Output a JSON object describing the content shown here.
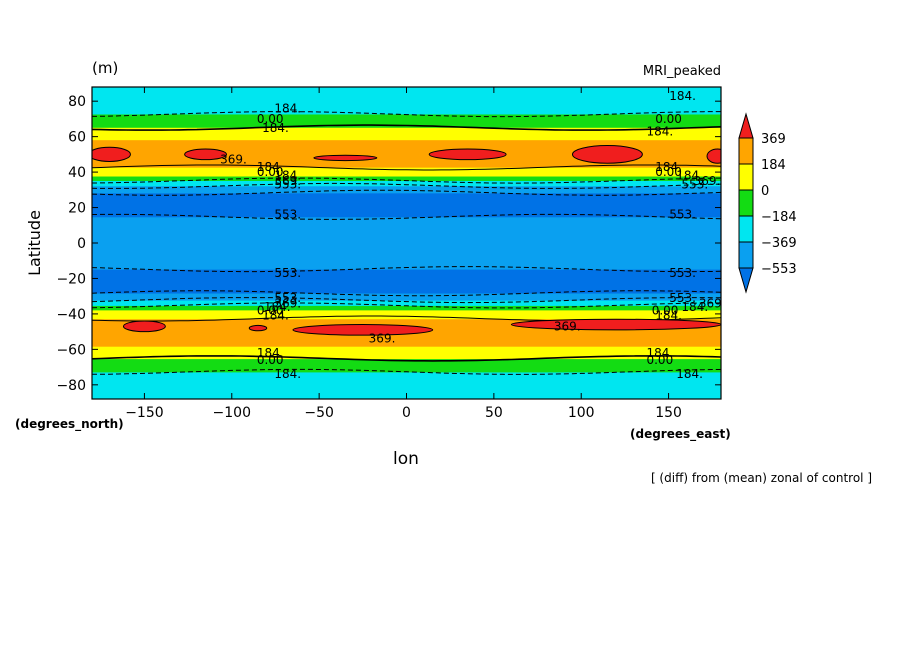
{
  "chart_data": {
    "type": "heatmap",
    "title_left": "(m)",
    "title_right": "MRI_peaked",
    "xlabel": "lon",
    "ylabel": "Latitude",
    "x_units": "(degrees_east)",
    "y_units": "(degrees_north)",
    "footnote": "[ (diff) from (mean) zonal of control ]",
    "xlim": [
      -180,
      180
    ],
    "ylim": [
      -88,
      88
    ],
    "x_ticks": [
      -150,
      -100,
      -50,
      0,
      50,
      100,
      150
    ],
    "y_ticks": [
      -80,
      -60,
      -40,
      -20,
      0,
      20,
      40,
      60,
      80
    ],
    "levels": [
      -553,
      -369,
      -184,
      0,
      184,
      369
    ],
    "colorbar_labels": [
      "369",
      "184",
      "0",
      "−184",
      "−369",
      "−553"
    ],
    "colors": [
      "#0072e6",
      "#0aa0f0",
      "#00e6f0",
      "#13dc13",
      "#ffff00",
      "#ffa500",
      "#f01e1e"
    ],
    "latitude_profile": [
      {
        "lat": 88,
        "value": -300
      },
      {
        "lat": 80,
        "value": -330
      },
      {
        "lat": 72,
        "value": -170
      },
      {
        "lat": 67,
        "value": -50
      },
      {
        "lat": 62,
        "value": 80
      },
      {
        "lat": 57,
        "value": 210
      },
      {
        "lat": 50,
        "value": 320
      },
      {
        "lat": 43,
        "value": 200
      },
      {
        "lat": 38,
        "value": 0
      },
      {
        "lat": 33,
        "value": -330
      },
      {
        "lat": 28,
        "value": -570
      },
      {
        "lat": 15,
        "value": -560
      },
      {
        "lat": 10,
        "value": -430
      },
      {
        "lat": 0,
        "value": -400
      },
      {
        "lat": -10,
        "value": -430
      },
      {
        "lat": -15,
        "value": -560
      },
      {
        "lat": -28,
        "value": -570
      },
      {
        "lat": -33,
        "value": -330
      },
      {
        "lat": -38,
        "value": 0
      },
      {
        "lat": -43,
        "value": 200
      },
      {
        "lat": -50,
        "value": 320
      },
      {
        "lat": -57,
        "value": 210
      },
      {
        "lat": -62,
        "value": 80
      },
      {
        "lat": -67,
        "value": -50
      },
      {
        "lat": -72,
        "value": -170
      },
      {
        "lat": -80,
        "value": -330
      },
      {
        "lat": -88,
        "value": -330
      }
    ],
    "peak_regions": [
      {
        "lon": -170,
        "lat": 50,
        "lon_half_width": 12,
        "lat_half_width": 4
      },
      {
        "lon": -115,
        "lat": 50,
        "lon_half_width": 12,
        "lat_half_width": 3
      },
      {
        "lon": -35,
        "lat": 48,
        "lon_half_width": 18,
        "lat_half_width": 1.5
      },
      {
        "lon": 35,
        "lat": 50,
        "lon_half_width": 22,
        "lat_half_width": 3
      },
      {
        "lon": 115,
        "lat": 50,
        "lon_half_width": 20,
        "lat_half_width": 5
      },
      {
        "lon": 178,
        "lat": 49,
        "lon_half_width": 6,
        "lat_half_width": 4
      },
      {
        "lon": -150,
        "lat": -47,
        "lon_half_width": 12,
        "lat_half_width": 3
      },
      {
        "lon": -85,
        "lat": -48,
        "lon_half_width": 5,
        "lat_half_width": 1.5
      },
      {
        "lon": -25,
        "lat": -49,
        "lon_half_width": 40,
        "lat_half_width": 3
      },
      {
        "lon": 120,
        "lat": -46,
        "lon_half_width": 60,
        "lat_half_width": 3
      }
    ],
    "contour_labels": [
      {
        "text": "184.",
        "lon": -68,
        "lat": 76
      },
      {
        "text": "0.00",
        "lon": -78,
        "lat": 70
      },
      {
        "text": "184.",
        "lon": -75,
        "lat": 65
      },
      {
        "text": "369.",
        "lon": -99,
        "lat": 47
      },
      {
        "text": "184.",
        "lon": -78,
        "lat": 43
      },
      {
        "text": "0.00",
        "lon": -78,
        "lat": 40
      },
      {
        "text": "184.",
        "lon": -68,
        "lat": 38
      },
      {
        "text": "369.",
        "lon": -68,
        "lat": 35
      },
      {
        "text": "553.",
        "lon": -68,
        "lat": 33
      },
      {
        "text": "553.",
        "lon": -68,
        "lat": 16
      },
      {
        "text": "184.",
        "lon": 158,
        "lat": 83
      },
      {
        "text": "0.00",
        "lon": 150,
        "lat": 70
      },
      {
        "text": "184.",
        "lon": 145,
        "lat": 63
      },
      {
        "text": "184.",
        "lon": 150,
        "lat": 43
      },
      {
        "text": "0.00",
        "lon": 150,
        "lat": 40
      },
      {
        "text": "184.",
        "lon": 162,
        "lat": 38
      },
      {
        "text": "369.",
        "lon": 172,
        "lat": 35
      },
      {
        "text": "553.",
        "lon": 165,
        "lat": 33
      },
      {
        "text": "553.",
        "lon": 158,
        "lat": 16
      },
      {
        "text": "553.",
        "lon": -68,
        "lat": -17
      },
      {
        "text": "553.",
        "lon": -68,
        "lat": -31
      },
      {
        "text": "369.",
        "lon": -68,
        "lat": -34
      },
      {
        "text": "184.",
        "lon": -74,
        "lat": -36
      },
      {
        "text": "0.00",
        "lon": -78,
        "lat": -38
      },
      {
        "text": "184.",
        "lon": -75,
        "lat": -41
      },
      {
        "text": "369.",
        "lon": -14,
        "lat": -54
      },
      {
        "text": "184.",
        "lon": -78,
        "lat": -62
      },
      {
        "text": "0.00",
        "lon": -78,
        "lat": -66
      },
      {
        "text": "184.",
        "lon": -68,
        "lat": -74
      },
      {
        "text": "553.",
        "lon": 158,
        "lat": -17
      },
      {
        "text": "553.",
        "lon": 158,
        "lat": -31
      },
      {
        "text": "369.",
        "lon": 175,
        "lat": -34
      },
      {
        "text": "184.",
        "lon": 165,
        "lat": -36
      },
      {
        "text": "0.00",
        "lon": 148,
        "lat": -38
      },
      {
        "text": "184.",
        "lon": 150,
        "lat": -41
      },
      {
        "text": "369.",
        "lon": 92,
        "lat": -47
      },
      {
        "text": "184.",
        "lon": 145,
        "lat": -62
      },
      {
        "text": "0.00",
        "lon": 145,
        "lat": -66
      },
      {
        "text": "184.",
        "lon": 162,
        "lat": -74
      }
    ]
  }
}
